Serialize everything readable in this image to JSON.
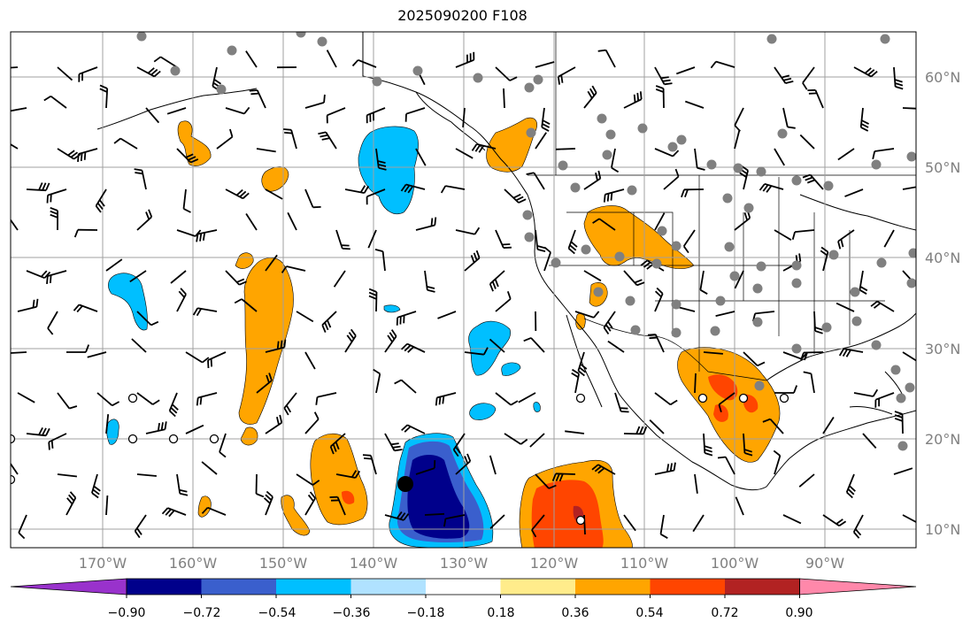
{
  "title": "2025090200 F108",
  "map": {
    "lat_labels": [
      "60°N",
      "50°N",
      "40°N",
      "30°N",
      "20°N",
      "10°N"
    ],
    "lon_labels": [
      "170°W",
      "160°W",
      "150°W",
      "140°W",
      "130°W",
      "120°W",
      "110°W",
      "100°W",
      "90°W"
    ],
    "grid_color": "#a0a0a0"
  },
  "colorbar": {
    "ticks": [
      "−0.90",
      "−0.72",
      "−0.54",
      "−0.36",
      "−0.18",
      "0.18",
      "0.36",
      "0.54",
      "0.72",
      "0.90"
    ],
    "colors": [
      "#9932cc",
      "#00008b",
      "#3a5fcd",
      "#00bfff",
      "#b0e2ff",
      "#ffffff",
      "#ffec8b",
      "#ffa500",
      "#ff4500",
      "#b22222",
      "#ff88aa"
    ]
  },
  "field_colors": {
    "strong_neg": "#00008b",
    "mid_neg": "#3a5fcd",
    "neg": "#00bfff",
    "pos": "#ffa500",
    "mid_pos": "#ff4500",
    "strong_pos": "#b22222"
  }
}
